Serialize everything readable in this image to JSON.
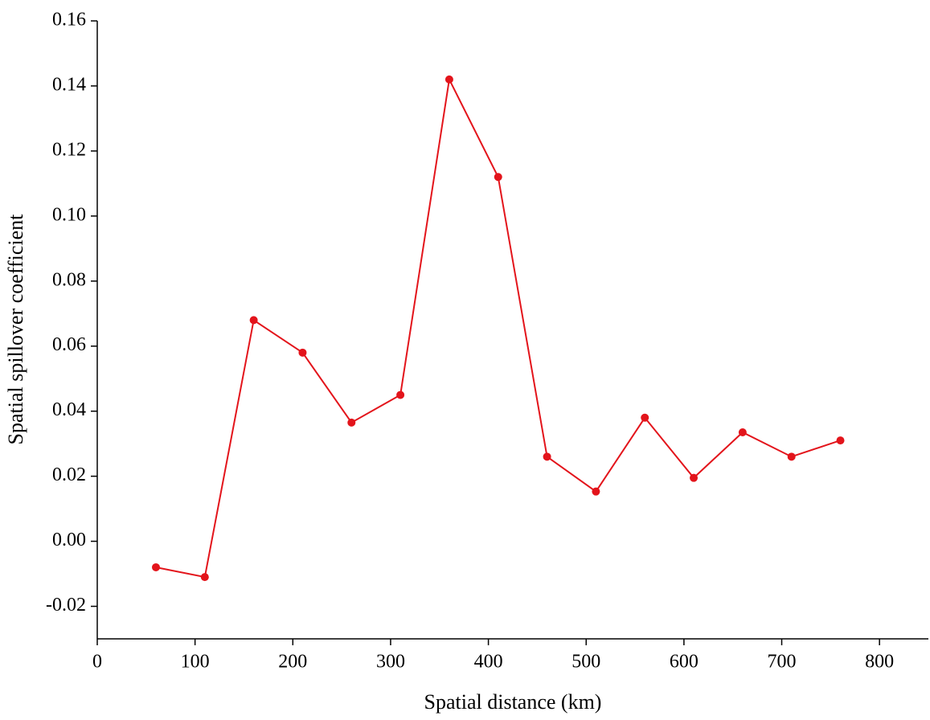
{
  "chart_data": {
    "type": "line",
    "x_label": "Spatial distance (km)",
    "y_label": "Spatial spillover coefficient",
    "x": [
      60,
      110,
      160,
      210,
      260,
      310,
      360,
      410,
      460,
      510,
      560,
      610,
      660,
      710,
      760
    ],
    "series": [
      {
        "color": "#e3141b",
        "values": [
          -0.008,
          -0.011,
          0.068,
          0.058,
          0.0365,
          0.045,
          0.142,
          0.112,
          0.026,
          0.0153,
          0.038,
          0.0195,
          0.0335,
          0.026,
          0.031
        ]
      }
    ],
    "xlim": [
      0,
      850
    ],
    "xticks": [
      0,
      100,
      200,
      300,
      400,
      500,
      600,
      700,
      800
    ],
    "ylim": [
      -0.03,
      0.16
    ],
    "yticks": [
      {
        "value": -0.02,
        "label": "-0.02"
      },
      {
        "value": 0,
        "label": "0.00"
      },
      {
        "value": 0.02,
        "label": "0.02"
      },
      {
        "value": 0.04,
        "label": "0.04"
      },
      {
        "value": 0.06,
        "label": "0.06"
      },
      {
        "value": 0.08,
        "label": "0.08"
      },
      {
        "value": 0.1,
        "label": "0.10"
      },
      {
        "value": 0.12,
        "label": "0.12"
      },
      {
        "value": 0.14,
        "label": "0.14"
      },
      {
        "value": 0.16,
        "label": "0.16"
      }
    ],
    "grid": false
  }
}
